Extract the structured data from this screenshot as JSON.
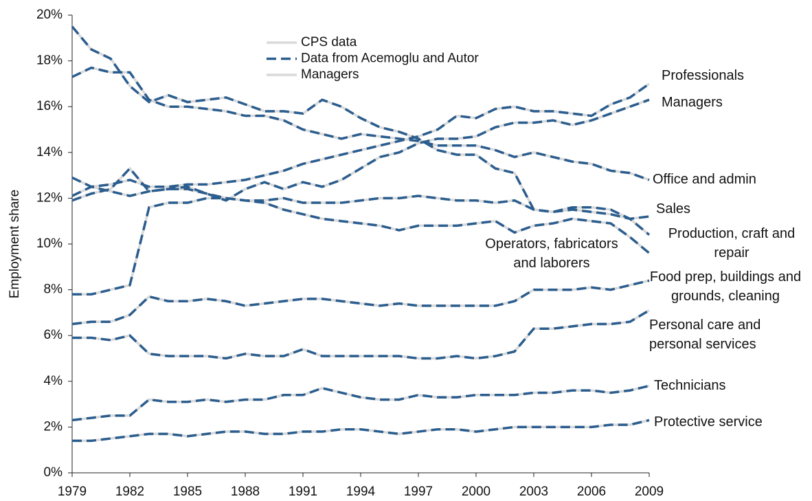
{
  "chart_data": {
    "type": "line",
    "y_label": "Employment share",
    "x": [
      1979,
      1980,
      1981,
      1982,
      1983,
      1984,
      1985,
      1986,
      1987,
      1988,
      1989,
      1990,
      1991,
      1992,
      1993,
      1994,
      1995,
      1996,
      1997,
      1998,
      1999,
      2000,
      2001,
      2002,
      2003,
      2004,
      2005,
      2006,
      2007,
      2008,
      2009
    ],
    "xlim": [
      1979,
      2009
    ],
    "xticks": [
      1979,
      1982,
      1985,
      1988,
      1991,
      1994,
      1997,
      2000,
      2003,
      2006,
      2009
    ],
    "ylim": [
      0,
      20
    ],
    "yticks": [
      {
        "value": 0,
        "label": "0%"
      },
      {
        "value": 2,
        "label": "2%"
      },
      {
        "value": 4,
        "label": "4%"
      },
      {
        "value": 6,
        "label": "6%"
      },
      {
        "value": 8,
        "label": "8%"
      },
      {
        "value": 10,
        "label": "10%"
      },
      {
        "value": 12,
        "label": "12%"
      },
      {
        "value": 14,
        "label": "14%"
      },
      {
        "value": 16,
        "label": "16%"
      },
      {
        "value": 18,
        "label": "18%"
      },
      {
        "value": 20,
        "label": "20%"
      }
    ],
    "legend": [
      {
        "name": "CPS data",
        "color": "#d9d9d9",
        "dash": false
      },
      {
        "name": "Data from Acemoglu and Autor",
        "color": "#2b5d8e",
        "dash": true
      },
      {
        "name": "Managers",
        "color": "#d9d9d9",
        "dash": false
      }
    ],
    "series": [
      {
        "name": "Professionals",
        "values": [
          12.1,
          12.5,
          12.6,
          12.8,
          12.5,
          12.5,
          12.6,
          12.6,
          12.7,
          12.8,
          13.0,
          13.2,
          13.5,
          13.7,
          13.9,
          14.1,
          14.3,
          14.5,
          14.7,
          15.0,
          15.6,
          15.5,
          15.9,
          16.0,
          15.8,
          15.8,
          15.7,
          15.6,
          16.1,
          16.4,
          17.0
        ]
      },
      {
        "name": "Managers",
        "values": [
          11.9,
          12.2,
          12.4,
          13.3,
          12.3,
          12.4,
          12.5,
          12.2,
          11.9,
          12.4,
          12.7,
          12.4,
          12.7,
          12.5,
          12.8,
          13.3,
          13.8,
          14.0,
          14.4,
          14.6,
          14.6,
          14.7,
          15.1,
          15.3,
          15.3,
          15.4,
          15.2,
          15.4,
          15.7,
          16.0,
          16.3
        ]
      },
      {
        "name": "Office and admin",
        "values": [
          17.3,
          17.7,
          17.5,
          17.5,
          16.3,
          16.0,
          16.0,
          15.9,
          15.8,
          15.6,
          15.6,
          15.4,
          15.0,
          14.8,
          14.6,
          14.8,
          14.7,
          14.6,
          14.5,
          14.3,
          14.3,
          14.3,
          14.1,
          13.8,
          14.0,
          13.8,
          13.6,
          13.5,
          13.2,
          13.1,
          12.8
        ]
      },
      {
        "name": "Sales",
        "values": [
          7.8,
          7.8,
          8.0,
          8.2,
          11.6,
          11.8,
          11.8,
          12.0,
          12.0,
          11.9,
          11.9,
          12.0,
          11.8,
          11.8,
          11.8,
          11.9,
          12.0,
          12.0,
          12.1,
          12.0,
          11.9,
          11.9,
          11.8,
          11.9,
          11.5,
          11.4,
          11.5,
          11.4,
          11.3,
          11.1,
          11.2
        ]
      },
      {
        "name": "Production, craft and repair",
        "values": [
          12.9,
          12.5,
          12.3,
          12.1,
          12.3,
          12.4,
          12.4,
          12.2,
          12.0,
          11.9,
          11.8,
          11.5,
          11.3,
          11.1,
          11.0,
          10.9,
          10.8,
          10.6,
          10.8,
          10.8,
          10.8,
          10.9,
          11.0,
          10.5,
          10.8,
          10.9,
          11.1,
          11.0,
          10.9,
          10.3,
          9.6
        ]
      },
      {
        "name": "Operators, fabricators and laborers",
        "values": [
          19.5,
          18.5,
          18.1,
          16.9,
          16.2,
          16.5,
          16.2,
          16.3,
          16.4,
          16.1,
          15.8,
          15.8,
          15.7,
          16.3,
          16.0,
          15.5,
          15.1,
          14.9,
          14.6,
          14.1,
          13.9,
          13.9,
          13.3,
          13.1,
          11.5,
          11.4,
          11.6,
          11.6,
          11.5,
          11.1,
          10.4
        ]
      },
      {
        "name": "Food prep, buildings and grounds, cleaning",
        "values": [
          6.5,
          6.6,
          6.6,
          6.9,
          7.7,
          7.5,
          7.5,
          7.6,
          7.5,
          7.3,
          7.4,
          7.5,
          7.6,
          7.6,
          7.5,
          7.4,
          7.3,
          7.4,
          7.3,
          7.3,
          7.3,
          7.3,
          7.3,
          7.5,
          8.0,
          8.0,
          8.0,
          8.1,
          8.0,
          8.2,
          8.4
        ]
      },
      {
        "name": "Personal care and personal services",
        "values": [
          5.9,
          5.9,
          5.8,
          6.0,
          5.2,
          5.1,
          5.1,
          5.1,
          5.0,
          5.2,
          5.1,
          5.1,
          5.4,
          5.1,
          5.1,
          5.1,
          5.1,
          5.1,
          5.0,
          5.0,
          5.1,
          5.0,
          5.1,
          5.3,
          6.3,
          6.3,
          6.4,
          6.5,
          6.5,
          6.6,
          7.1
        ]
      },
      {
        "name": "Technicians",
        "values": [
          2.3,
          2.4,
          2.5,
          2.5,
          3.2,
          3.1,
          3.1,
          3.2,
          3.1,
          3.2,
          3.2,
          3.4,
          3.4,
          3.7,
          3.5,
          3.3,
          3.2,
          3.2,
          3.4,
          3.3,
          3.3,
          3.4,
          3.4,
          3.4,
          3.5,
          3.5,
          3.6,
          3.6,
          3.5,
          3.6,
          3.8
        ]
      },
      {
        "name": "Protective service",
        "values": [
          1.4,
          1.4,
          1.5,
          1.6,
          1.7,
          1.7,
          1.6,
          1.7,
          1.8,
          1.8,
          1.7,
          1.7,
          1.8,
          1.8,
          1.9,
          1.9,
          1.8,
          1.7,
          1.8,
          1.9,
          1.9,
          1.8,
          1.9,
          2.0,
          2.0,
          2.0,
          2.0,
          2.0,
          2.1,
          2.1,
          2.3
        ]
      }
    ]
  }
}
